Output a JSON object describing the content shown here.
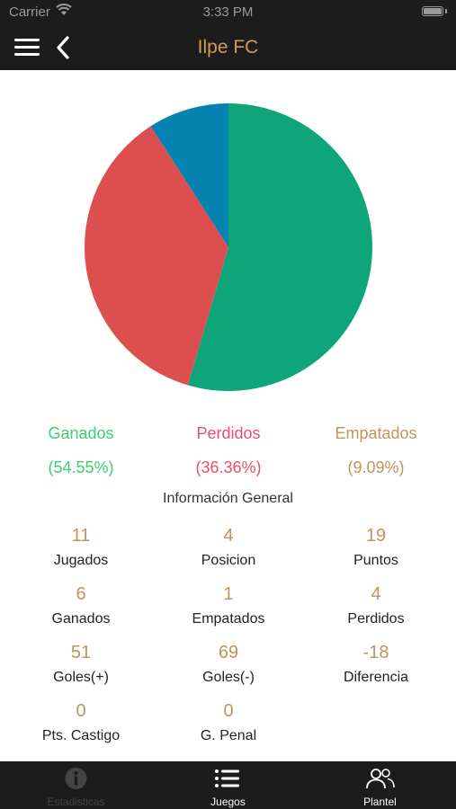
{
  "status_bar": {
    "carrier": "Carrier",
    "time": "3:33 PM"
  },
  "header": {
    "title": "Ilpe FC"
  },
  "chart_data": {
    "type": "pie",
    "labels": [
      "Ganados",
      "Perdidos",
      "Empatados"
    ],
    "values": [
      54.55,
      36.36,
      9.09
    ],
    "colors": [
      "#0fa57b",
      "#dd4e4e",
      "#0683b0"
    ]
  },
  "legend": [
    {
      "label": "Ganados",
      "pct": "(54.55%)",
      "color": "#3ad06f"
    },
    {
      "label": "Perdidos",
      "pct": "(36.36%)",
      "color": "#ec4f6a"
    },
    {
      "label": "Empatados",
      "pct": "(9.09%)",
      "color": "#c4925b"
    }
  ],
  "info": {
    "title": "Información General",
    "stats": [
      {
        "value": "11",
        "label": "Jugados"
      },
      {
        "value": "4",
        "label": "Posicion"
      },
      {
        "value": "19",
        "label": "Puntos"
      },
      {
        "value": "6",
        "label": "Ganados"
      },
      {
        "value": "1",
        "label": "Empatados"
      },
      {
        "value": "4",
        "label": "Perdidos"
      },
      {
        "value": "51",
        "label": "Goles(+)"
      },
      {
        "value": "69",
        "label": "Goles(-)"
      },
      {
        "value": "-18",
        "label": "Diferencia"
      },
      {
        "value": "0",
        "label": "Pts. Castigo"
      },
      {
        "value": "0",
        "label": "G. Penal"
      }
    ]
  },
  "tabbar": {
    "tabs": [
      {
        "label": "Estadisticas",
        "icon": "info-icon",
        "selected": true
      },
      {
        "label": "Juegos",
        "icon": "list-icon",
        "selected": false
      },
      {
        "label": "Plantel",
        "icon": "people-icon",
        "selected": false
      }
    ],
    "colors": {
      "selected": "#444444",
      "normal": "#ffffff"
    }
  }
}
